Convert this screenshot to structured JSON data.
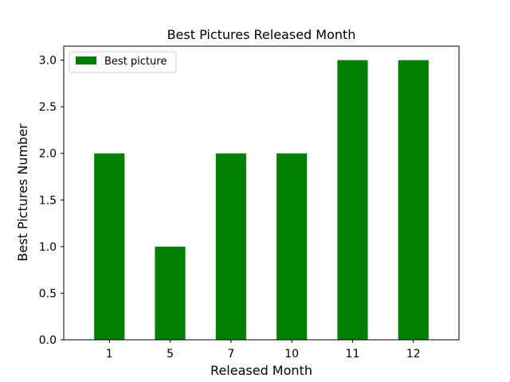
{
  "chart_data": {
    "type": "bar",
    "title": "Best Pictures Released Month",
    "xlabel": "Released Month",
    "ylabel": "Best Pictures Number",
    "categories": [
      "1",
      "5",
      "7",
      "10",
      "11",
      "12"
    ],
    "series": [
      {
        "name": "Best picture",
        "values": [
          2,
          1,
          2,
          2,
          3,
          3
        ],
        "color": "#008000"
      }
    ],
    "ylim": [
      0,
      3.15
    ],
    "yticks": [
      "0.0",
      "0.5",
      "1.0",
      "1.5",
      "2.0",
      "2.5",
      "3.0"
    ],
    "grid": false,
    "legend_position": "top-left"
  }
}
